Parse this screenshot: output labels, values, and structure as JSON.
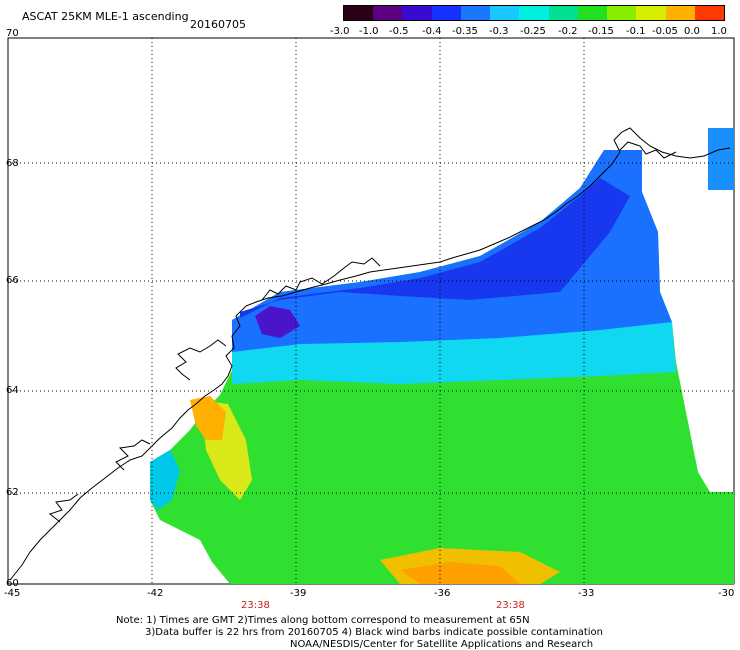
{
  "title": "ASCAT 25KM MLE-1 ascending",
  "date": "20160705",
  "colorbar": {
    "labels": [
      "-3.0",
      "-1.0",
      "-0.5",
      "-0.4",
      "-0.35",
      "-0.3",
      "-0.25",
      "-0.2",
      "-0.15",
      "-0.1",
      "-0.05",
      "0.0",
      "1.0"
    ],
    "colors": [
      "#2a0018",
      "#5a0080",
      "#3a0ad0",
      "#1530ff",
      "#1a78ff",
      "#18c8ff",
      "#00f0e0",
      "#00e090",
      "#20e020",
      "#88ee00",
      "#d8ee00",
      "#ffb000",
      "#ff3a00"
    ]
  },
  "axes": {
    "lat_labels": [
      "70",
      "68",
      "66",
      "64",
      "62",
      "60"
    ],
    "lon_labels": [
      "-45",
      "-42",
      "-39",
      "-36",
      "-33",
      "-30"
    ],
    "grid": true
  },
  "times": [
    "23:38",
    "23:38"
  ],
  "notes": {
    "line1": "Note: 1) Times are GMT 2)Times along bottom correspond to measurement at 65N",
    "line2": "3)Data buffer is 22 hrs from 20160705 4) Black wind barbs indicate possible contamination",
    "line3": "NOAA/NESDIS/Center for Satellite Applications and Research"
  }
}
